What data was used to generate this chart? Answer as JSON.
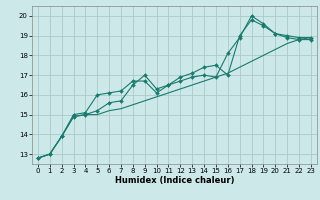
{
  "xlabel": "Humidex (Indice chaleur)",
  "ylabel": "",
  "bg_color": "#cce8e8",
  "grid_color": "#aacaca",
  "line_color": "#1a7a6e",
  "xlim": [
    -0.5,
    23.5
  ],
  "ylim": [
    12.5,
    20.5
  ],
  "xticks": [
    0,
    1,
    2,
    3,
    4,
    5,
    6,
    7,
    8,
    9,
    10,
    11,
    12,
    13,
    14,
    15,
    16,
    17,
    18,
    19,
    20,
    21,
    22,
    23
  ],
  "yticks": [
    13,
    14,
    15,
    16,
    17,
    18,
    19,
    20
  ],
  "line1_x": [
    0,
    1,
    2,
    3,
    4,
    5,
    6,
    7,
    8,
    9,
    10,
    11,
    12,
    13,
    14,
    15,
    16,
    17,
    18,
    19,
    20,
    21,
    22,
    23
  ],
  "line1_y": [
    12.8,
    13.0,
    13.9,
    15.0,
    15.1,
    16.0,
    16.1,
    16.2,
    16.7,
    16.7,
    16.1,
    16.5,
    16.7,
    16.9,
    17.0,
    16.9,
    18.1,
    18.9,
    20.0,
    19.6,
    19.1,
    19.0,
    18.9,
    18.9
  ],
  "line2_x": [
    0,
    1,
    2,
    3,
    4,
    5,
    6,
    7,
    8,
    9,
    10,
    11,
    12,
    13,
    14,
    15,
    16,
    17,
    18,
    19,
    20,
    21,
    22,
    23
  ],
  "line2_y": [
    12.8,
    13.0,
    13.9,
    14.9,
    15.0,
    15.2,
    15.6,
    15.7,
    16.5,
    17.0,
    16.3,
    16.5,
    16.9,
    17.1,
    17.4,
    17.5,
    17.0,
    19.0,
    19.8,
    19.5,
    19.1,
    18.9,
    18.8,
    18.8
  ],
  "line3_x": [
    0,
    1,
    2,
    3,
    4,
    5,
    6,
    7,
    8,
    9,
    10,
    11,
    12,
    13,
    14,
    15,
    16,
    17,
    18,
    19,
    20,
    21,
    22,
    23
  ],
  "line3_y": [
    12.8,
    13.0,
    13.9,
    14.9,
    15.0,
    15.0,
    15.2,
    15.3,
    15.5,
    15.7,
    15.9,
    16.1,
    16.3,
    16.5,
    16.7,
    16.9,
    17.1,
    17.4,
    17.7,
    18.0,
    18.3,
    18.6,
    18.8,
    18.9
  ],
  "tick_fontsize": 5,
  "xlabel_fontsize": 6,
  "marker_size": 2.0,
  "line_width": 0.8
}
